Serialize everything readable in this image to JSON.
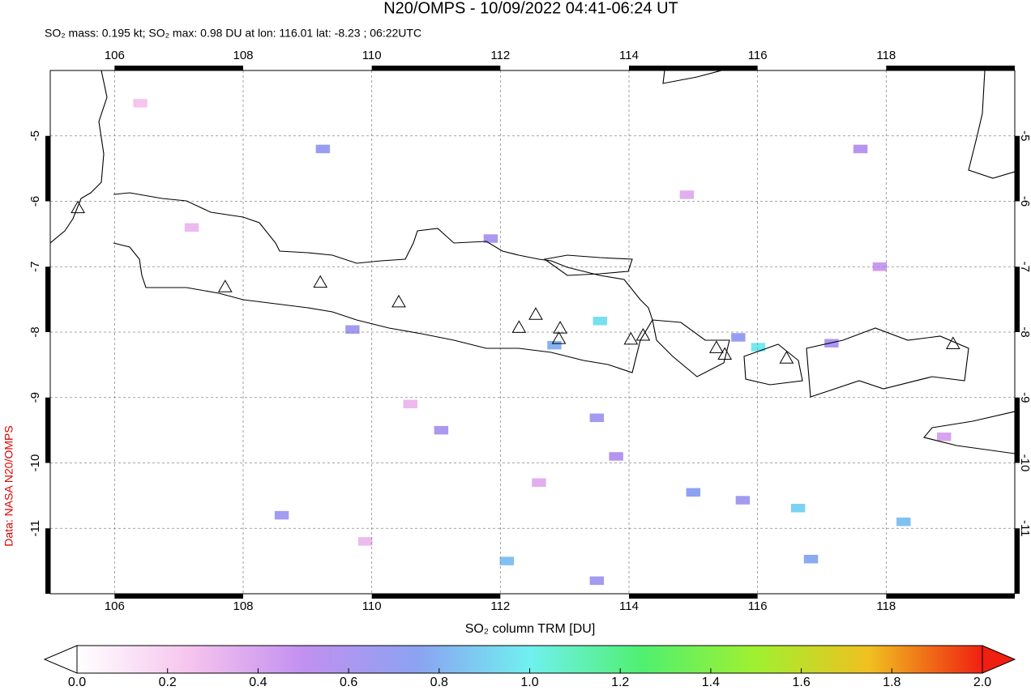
{
  "chart_data": {
    "type": "map",
    "title": "N20/OMPS - 10/09/2022 04:41-06:24 UT",
    "subtitle": "SO₂ mass: 0.195 kt; SO₂ max: 0.98 DU at lon: 116.01 lat: -8.23 ; 06:22UTC",
    "source": "Data: NASA N20/OMPS",
    "colorbar_label": "SO₂ column TRM [DU]",
    "xlim": [
      105,
      120
    ],
    "ylim": [
      -12,
      -4
    ],
    "xticks": [
      106,
      108,
      110,
      112,
      114,
      116,
      118
    ],
    "yticks": [
      -5,
      -6,
      -7,
      -8,
      -9,
      -10,
      -11
    ],
    "grid": true,
    "clim": [
      0,
      2
    ],
    "cticks": [
      {
        "value": 0,
        "label": "0.0"
      },
      {
        "value": 0.2,
        "label": "0.2"
      },
      {
        "value": 0.4,
        "label": "0.4"
      },
      {
        "value": 0.6,
        "label": "0.6"
      },
      {
        "value": 0.8,
        "label": "0.8"
      },
      {
        "value": 1,
        "label": "1.0"
      },
      {
        "value": 1.2,
        "label": "1.2"
      },
      {
        "value": 1.4,
        "label": "1.4"
      },
      {
        "value": 1.6,
        "label": "1.6"
      },
      {
        "value": 1.8,
        "label": "1.8"
      },
      {
        "value": 2,
        "label": "2.0"
      }
    ],
    "colormap": [
      "#ffffff",
      "#f6c4ee",
      "#c290f0",
      "#8ca2f2",
      "#70f0f0",
      "#50f070",
      "#a0f030",
      "#f0c020",
      "#f02010"
    ],
    "volcanoes": {
      "lon": [
        107.72,
        109.2,
        110.42,
        112.29,
        112.55,
        112.93,
        112.91,
        114.03,
        114.22,
        115.36,
        115.49,
        116.45,
        119.04,
        105.43
      ],
      "lat": [
        -7.31,
        -7.24,
        -7.54,
        -7.93,
        -7.73,
        -7.94,
        -8.1,
        -8.11,
        -8.05,
        -8.24,
        -8.34,
        -8.4,
        -8.18,
        -6.1
      ]
    },
    "pixels": {
      "lon": [
        116.01,
        113.55,
        116.63,
        118.27,
        115.0,
        116.83,
        112.1,
        111.85,
        112.84,
        109.24,
        115.7,
        109.7,
        113.5,
        117.6,
        117.15,
        108.6,
        115.77,
        113.5,
        111.08,
        113.8,
        107.2,
        110.6,
        114.9,
        118.9,
        106.4,
        117.9,
        112.6,
        109.9
      ],
      "lat": [
        -8.23,
        -7.83,
        -10.69,
        -10.9,
        -10.45,
        -11.47,
        -11.5,
        -6.57,
        -8.2,
        -5.2,
        -8.08,
        -7.96,
        -9.31,
        -5.2,
        -8.17,
        -10.8,
        -10.57,
        -11.8,
        -9.5,
        -9.9,
        -6.4,
        -9.1,
        -5.9,
        -9.6,
        -4.5,
        -7.0,
        -10.3,
        -11.2
      ],
      "values": [
        0.98,
        0.95,
        0.9,
        0.85,
        0.75,
        0.78,
        0.85,
        0.6,
        0.8,
        0.7,
        0.7,
        0.65,
        0.65,
        0.55,
        0.6,
        0.65,
        0.65,
        0.65,
        0.6,
        0.55,
        0.3,
        0.3,
        0.35,
        0.4,
        0.25,
        0.45,
        0.35,
        0.3
      ]
    }
  }
}
